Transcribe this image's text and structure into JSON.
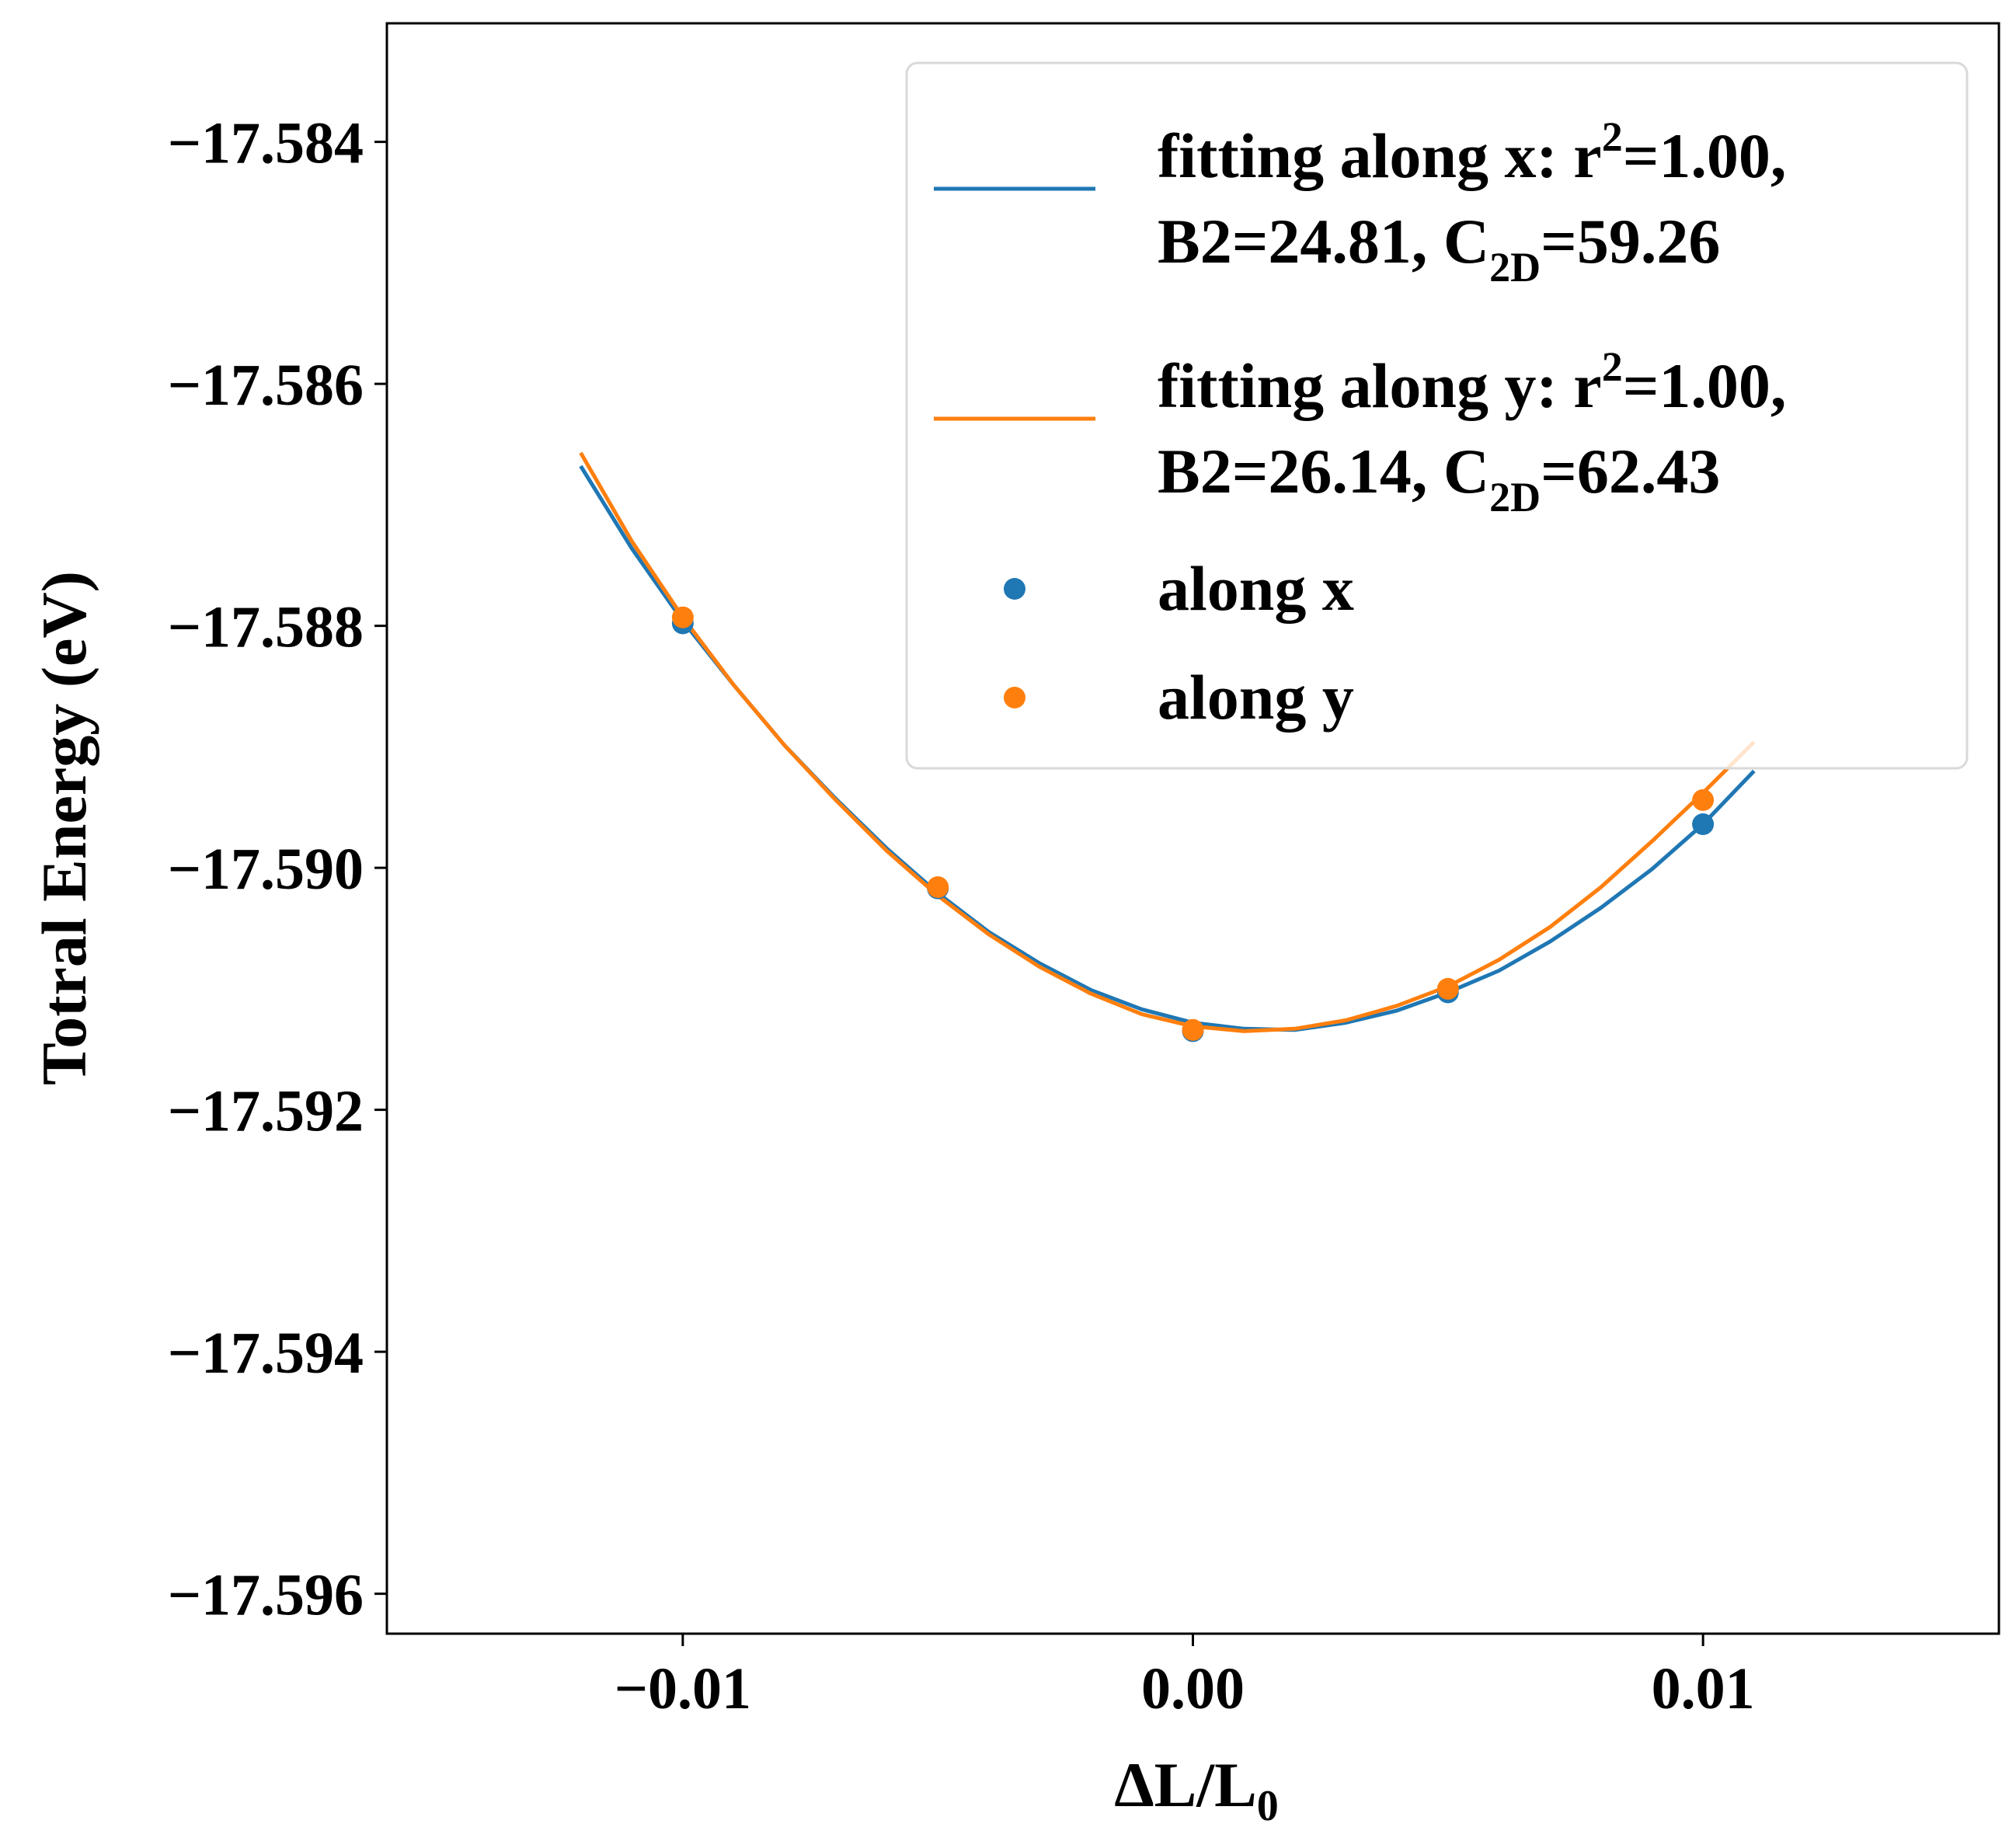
{
  "chart_data": {
    "type": "scatter",
    "xlabel": "ΔL/L",
    "xlabel_sub": "0",
    "ylabel": "Totral Energy (eV)",
    "xlim": [
      -0.0158,
      0.0158
    ],
    "ylim": [
      -17.59633,
      -17.58302
    ],
    "grid": false,
    "legend_position": "top-right",
    "x_ticks": [
      -0.01,
      0.0,
      0.01
    ],
    "x_tick_labels": [
      "−0.01",
      "0.00",
      "0.01"
    ],
    "y_ticks": [
      -17.584,
      -17.586,
      -17.588,
      -17.59,
      -17.592,
      -17.594,
      -17.596
    ],
    "y_tick_labels": [
      "−17.584",
      "−17.586",
      "−17.588",
      "−17.590",
      "−17.592",
      "−17.594",
      "−17.596"
    ],
    "fit_range": [
      -0.012,
      0.011
    ],
    "fits": [
      {
        "name": "fitting along x",
        "color": "#1f77b4",
        "legend_line1_a": "fitting along x: r",
        "legend_line1_sup": "2",
        "legend_line1_b": "=1.00,",
        "legend_line2_a": "B2=24.81, C",
        "legend_line2_sub": "2D",
        "legend_line2_b": "=59.26",
        "x": [
          -0.012,
          -0.011,
          -0.01,
          -0.009,
          -0.008,
          -0.007,
          -0.006,
          -0.005,
          -0.004,
          -0.003,
          -0.002,
          -0.001,
          0.0,
          0.001,
          0.002,
          0.003,
          0.004,
          0.005,
          0.006,
          0.007,
          0.008,
          0.009,
          0.01,
          0.011
        ],
        "y": [
          -17.58668,
          -17.58736,
          -17.58796,
          -17.58849,
          -17.58899,
          -17.58943,
          -17.58984,
          -17.59021,
          -17.59053,
          -17.59079,
          -17.59101,
          -17.59117,
          -17.59128,
          -17.59133,
          -17.59134,
          -17.59128,
          -17.59118,
          -17.59103,
          -17.59085,
          -17.59061,
          -17.59033,
          -17.59001,
          -17.58964,
          -17.5892
        ]
      },
      {
        "name": "fitting along y",
        "color": "#ff7f0e",
        "legend_line1_a": "fitting along y: r",
        "legend_line1_sup": "2",
        "legend_line1_b": "=1.00,",
        "legend_line2_a": "B2=26.14, C",
        "legend_line2_sub": "2D",
        "legend_line2_b": "=62.43",
        "x": [
          -0.012,
          -0.011,
          -0.01,
          -0.009,
          -0.008,
          -0.007,
          -0.006,
          -0.005,
          -0.004,
          -0.003,
          -0.002,
          -0.001,
          0.0,
          0.001,
          0.002,
          0.003,
          0.004,
          0.005,
          0.006,
          0.007,
          0.008,
          0.009,
          0.01,
          0.011
        ],
        "y": [
          -17.58657,
          -17.5873,
          -17.58793,
          -17.58849,
          -17.58899,
          -17.58944,
          -17.58986,
          -17.59023,
          -17.59055,
          -17.59082,
          -17.59104,
          -17.59121,
          -17.59131,
          -17.59135,
          -17.59133,
          -17.59126,
          -17.59114,
          -17.59098,
          -17.59076,
          -17.59049,
          -17.59016,
          -17.58978,
          -17.58938,
          -17.58896
        ]
      }
    ],
    "series": [
      {
        "name": "along x",
        "color": "#1f77b4",
        "x": [
          -0.01,
          -0.005,
          0.0,
          0.005,
          0.01
        ],
        "y": [
          -17.58798,
          -17.59017,
          -17.59135,
          -17.59103,
          -17.58964
        ]
      },
      {
        "name": "along y",
        "color": "#ff7f0e",
        "x": [
          -0.01,
          -0.005,
          0.0,
          0.005,
          0.01
        ],
        "y": [
          -17.58793,
          -17.59016,
          -17.59134,
          -17.591,
          -17.58944
        ]
      }
    ]
  }
}
